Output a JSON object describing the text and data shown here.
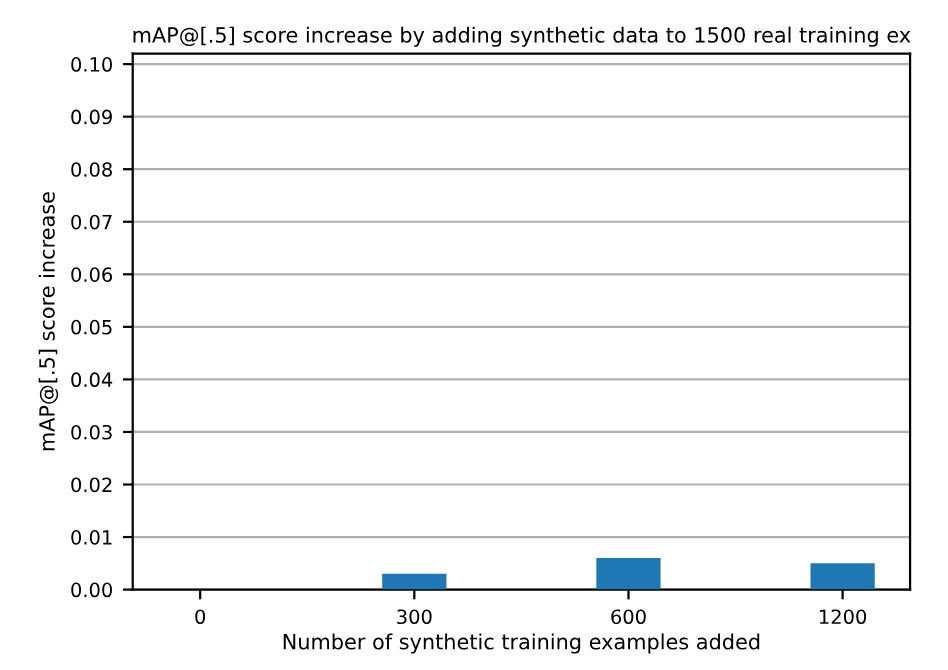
{
  "chart_data": {
    "type": "bar",
    "title": "mAP@[.5] score increase by adding synthetic data to 1500 real training ex",
    "xlabel": "Number of synthetic training examples added",
    "ylabel": "mAP@[.5] score increase",
    "categories": [
      "0",
      "300",
      "600",
      "1200"
    ],
    "values": [
      0,
      0.003,
      0.006,
      0.005
    ],
    "color": "#1f77b4",
    "ylim": [
      0,
      0.102
    ],
    "yticks": [
      {
        "value": 0,
        "label": "0.00"
      },
      {
        "value": 0.01,
        "label": "0.01"
      },
      {
        "value": 0.02,
        "label": "0.02"
      },
      {
        "value": 0.03,
        "label": "0.03"
      },
      {
        "value": 0.04,
        "label": "0.04"
      },
      {
        "value": 0.05,
        "label": "0.05"
      },
      {
        "value": 0.06,
        "label": "0.06"
      },
      {
        "value": 0.07,
        "label": "0.07"
      },
      {
        "value": 0.08,
        "label": "0.08"
      },
      {
        "value": 0.09,
        "label": "0.09"
      },
      {
        "value": 0.1,
        "label": "0.10"
      }
    ],
    "grid": "y"
  }
}
